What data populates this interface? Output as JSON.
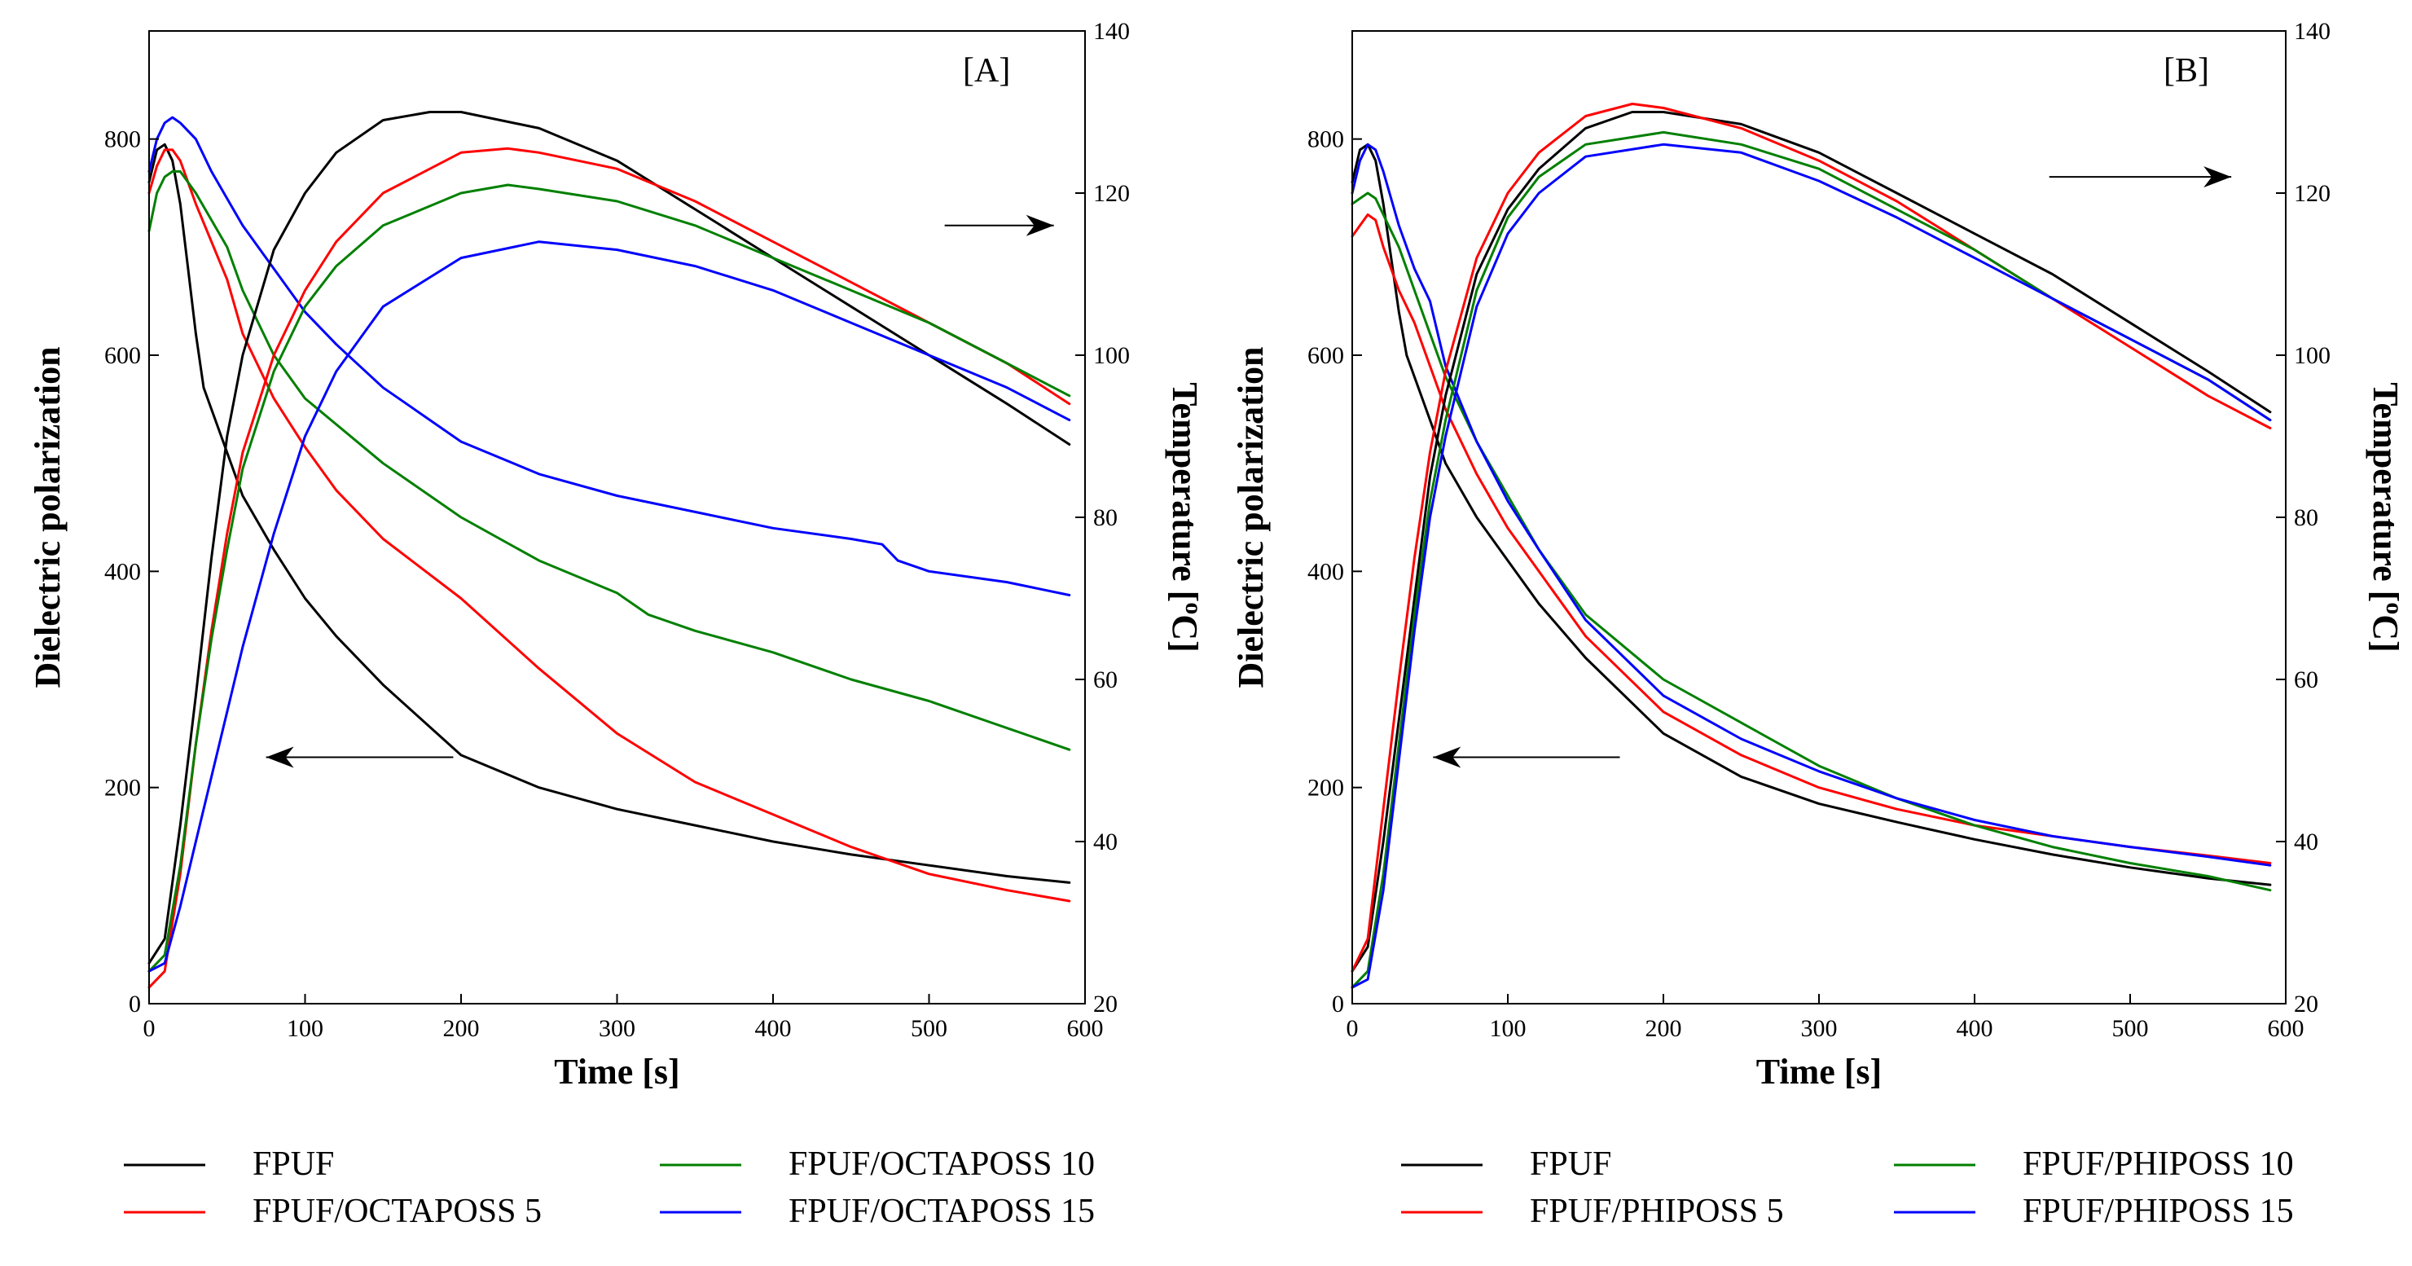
{
  "chart_data": [
    {
      "type": "line",
      "panel_label": "[A]",
      "xlabel": "Time [s]",
      "ylabel": "Dielectric polarization",
      "y2label_main": "Temperature [",
      "y2label_sup": "o",
      "y2label_end": "C]",
      "xlim": [
        0,
        600
      ],
      "ylim": [
        0,
        900
      ],
      "y2lim": [
        20,
        140
      ],
      "xticks": [
        0,
        100,
        200,
        300,
        400,
        500,
        600
      ],
      "yticks": [
        0,
        200,
        400,
        600,
        800
      ],
      "y2ticks": [
        20,
        40,
        60,
        80,
        100,
        120,
        140
      ],
      "arrows": [
        {
          "axis": "y",
          "direction": "left",
          "x_from": 195,
          "x_to": 75,
          "y": 228
        },
        {
          "axis": "y2",
          "direction": "right",
          "x_from": 510,
          "x_to": 580,
          "y": 116
        }
      ],
      "legend": [
        {
          "name": "FPUF",
          "color": "#000000"
        },
        {
          "name": "FPUF/OCTAPOSS 10",
          "color": "#008000"
        },
        {
          "name": "FPUF/OCTAPOSS 5",
          "color": "#ff0000"
        },
        {
          "name": "FPUF/OCTAPOSS 15",
          "color": "#0000ff"
        }
      ],
      "series": [
        {
          "name": "FPUF",
          "color": "#000000",
          "axis": "y",
          "x": [
            0,
            5,
            10,
            15,
            20,
            25,
            30,
            35,
            45,
            60,
            80,
            100,
            120,
            150,
            200,
            250,
            300,
            350,
            400,
            450,
            500,
            550,
            590
          ],
          "values": [
            760,
            790,
            795,
            780,
            740,
            680,
            620,
            570,
            530,
            470,
            420,
            375,
            340,
            295,
            230,
            200,
            180,
            165,
            150,
            138,
            128,
            118,
            112
          ]
        },
        {
          "name": "FPUF/OCTAPOSS 5",
          "color": "#ff0000",
          "axis": "y",
          "x": [
            0,
            5,
            10,
            15,
            20,
            30,
            50,
            60,
            80,
            100,
            120,
            150,
            200,
            250,
            300,
            350,
            400,
            450,
            500,
            550,
            590
          ],
          "values": [
            750,
            775,
            790,
            790,
            780,
            740,
            670,
            620,
            560,
            515,
            475,
            430,
            375,
            310,
            250,
            205,
            175,
            145,
            120,
            105,
            95
          ]
        },
        {
          "name": "FPUF/OCTAPOSS 10",
          "color": "#008000",
          "axis": "y",
          "x": [
            0,
            5,
            10,
            15,
            20,
            30,
            50,
            60,
            80,
            100,
            150,
            200,
            250,
            300,
            320,
            350,
            400,
            450,
            500,
            550,
            590
          ],
          "values": [
            715,
            750,
            765,
            770,
            770,
            750,
            700,
            660,
            600,
            560,
            500,
            450,
            410,
            380,
            360,
            345,
            325,
            300,
            280,
            255,
            235
          ]
        },
        {
          "name": "FPUF/OCTAPOSS 15",
          "color": "#0000ff",
          "axis": "y",
          "x": [
            0,
            5,
            10,
            15,
            20,
            30,
            40,
            60,
            80,
            100,
            120,
            150,
            200,
            250,
            300,
            350,
            400,
            450,
            470,
            480,
            500,
            550,
            590
          ],
          "values": [
            770,
            800,
            815,
            820,
            815,
            800,
            770,
            720,
            680,
            640,
            610,
            570,
            520,
            490,
            470,
            455,
            440,
            430,
            425,
            410,
            400,
            390,
            378
          ]
        },
        {
          "name": "FPUF",
          "color": "#000000",
          "axis": "y2",
          "x": [
            0,
            10,
            20,
            30,
            40,
            50,
            60,
            80,
            100,
            120,
            150,
            180,
            200,
            250,
            300,
            350,
            400,
            450,
            500,
            550,
            590
          ],
          "values": [
            25,
            28,
            42,
            58,
            75,
            90,
            100,
            113,
            120,
            125,
            129,
            130,
            130,
            128,
            124,
            118,
            112,
            106,
            100,
            94,
            89
          ]
        },
        {
          "name": "FPUF/OCTAPOSS 5",
          "color": "#ff0000",
          "axis": "y2",
          "x": [
            0,
            10,
            20,
            30,
            40,
            50,
            60,
            80,
            100,
            120,
            150,
            200,
            230,
            250,
            300,
            350,
            400,
            450,
            500,
            550,
            590
          ],
          "values": [
            22,
            24,
            36,
            52,
            66,
            78,
            88,
            100,
            108,
            114,
            120,
            125,
            125.5,
            125,
            123,
            119,
            114,
            109,
            104,
            99,
            94
          ]
        },
        {
          "name": "FPUF/OCTAPOSS 10",
          "color": "#008000",
          "axis": "y2",
          "x": [
            0,
            10,
            20,
            30,
            40,
            50,
            60,
            80,
            100,
            120,
            150,
            200,
            230,
            250,
            300,
            350,
            400,
            450,
            500,
            550,
            590
          ],
          "values": [
            24,
            26,
            37,
            52,
            65,
            76,
            86,
            98,
            106,
            111,
            116,
            120,
            121,
            120.5,
            119,
            116,
            112,
            108,
            104,
            99,
            95
          ]
        },
        {
          "name": "FPUF/OCTAPOSS 15",
          "color": "#0000ff",
          "axis": "y2",
          "x": [
            0,
            10,
            20,
            30,
            40,
            50,
            60,
            80,
            100,
            120,
            150,
            200,
            250,
            300,
            350,
            400,
            450,
            500,
            550,
            590
          ],
          "values": [
            24,
            25,
            32,
            40,
            48,
            56,
            64,
            78,
            90,
            98,
            106,
            112,
            114,
            113,
            111,
            108,
            104,
            100,
            96,
            92
          ]
        }
      ]
    },
    {
      "type": "line",
      "panel_label": "[B]",
      "xlabel": "Time [s]",
      "ylabel": "Dielectric polarization",
      "y2label_main": "Temperature [",
      "y2label_sup": "o",
      "y2label_end": "C]",
      "xlim": [
        0,
        600
      ],
      "ylim": [
        0,
        900
      ],
      "y2lim": [
        20,
        140
      ],
      "xticks": [
        0,
        100,
        200,
        300,
        400,
        500,
        600
      ],
      "yticks": [
        0,
        200,
        400,
        600,
        800
      ],
      "y2ticks": [
        20,
        40,
        60,
        80,
        100,
        120,
        140
      ],
      "arrows": [
        {
          "axis": "y",
          "direction": "left",
          "x_from": 172,
          "x_to": 52,
          "y": 228
        },
        {
          "axis": "y2",
          "direction": "right",
          "x_from": 448,
          "x_to": 565,
          "y": 122
        }
      ],
      "legend": [
        {
          "name": "FPUF",
          "color": "#000000"
        },
        {
          "name": "FPUF/PHIPOSS 10",
          "color": "#008000"
        },
        {
          "name": "FPUF/PHIPOSS 5",
          "color": "#ff0000"
        },
        {
          "name": "FPUF/PHIPOSS 15",
          "color": "#0000ff"
        }
      ],
      "series": [
        {
          "name": "FPUF",
          "color": "#000000",
          "axis": "y",
          "x": [
            0,
            5,
            10,
            15,
            20,
            25,
            30,
            35,
            45,
            60,
            80,
            100,
            120,
            150,
            200,
            250,
            300,
            350,
            400,
            450,
            500,
            550,
            590
          ],
          "values": [
            760,
            790,
            795,
            780,
            740,
            690,
            640,
            600,
            560,
            500,
            450,
            410,
            370,
            320,
            250,
            210,
            185,
            168,
            152,
            138,
            126,
            116,
            110
          ]
        },
        {
          "name": "FPUF/PHIPOSS 5",
          "color": "#ff0000",
          "axis": "y",
          "x": [
            0,
            5,
            10,
            15,
            20,
            30,
            40,
            50,
            60,
            80,
            100,
            120,
            150,
            200,
            250,
            300,
            350,
            400,
            450,
            500,
            550,
            590
          ],
          "values": [
            710,
            720,
            730,
            725,
            700,
            660,
            630,
            590,
            550,
            490,
            440,
            400,
            340,
            270,
            230,
            200,
            180,
            165,
            155,
            145,
            137,
            130
          ]
        },
        {
          "name": "FPUF/PHIPOSS 10",
          "color": "#008000",
          "axis": "y",
          "x": [
            0,
            5,
            10,
            15,
            20,
            30,
            40,
            50,
            60,
            80,
            100,
            120,
            150,
            200,
            250,
            300,
            350,
            400,
            450,
            500,
            550,
            590
          ],
          "values": [
            740,
            745,
            750,
            745,
            730,
            700,
            660,
            620,
            580,
            520,
            470,
            420,
            360,
            300,
            260,
            220,
            190,
            165,
            145,
            130,
            118,
            105
          ]
        },
        {
          "name": "FPUF/PHIPOSS 15",
          "color": "#0000ff",
          "axis": "y",
          "x": [
            0,
            5,
            10,
            15,
            20,
            30,
            40,
            50,
            60,
            80,
            100,
            120,
            150,
            200,
            250,
            300,
            350,
            400,
            450,
            500,
            550,
            590
          ],
          "values": [
            750,
            780,
            795,
            790,
            770,
            720,
            680,
            650,
            590,
            520,
            465,
            420,
            355,
            285,
            245,
            215,
            190,
            170,
            155,
            145,
            136,
            128
          ]
        },
        {
          "name": "FPUF",
          "color": "#000000",
          "axis": "y2",
          "x": [
            0,
            10,
            20,
            30,
            40,
            50,
            60,
            80,
            100,
            120,
            150,
            180,
            200,
            250,
            300,
            350,
            400,
            450,
            500,
            550,
            590
          ],
          "values": [
            24,
            27,
            40,
            55,
            70,
            85,
            95,
            110,
            118,
            123,
            128,
            130,
            130,
            128.5,
            125,
            120,
            115,
            110,
            104,
            98,
            93
          ]
        },
        {
          "name": "FPUF/PHIPOSS 5",
          "color": "#ff0000",
          "axis": "y2",
          "x": [
            0,
            10,
            20,
            30,
            40,
            50,
            60,
            80,
            100,
            120,
            150,
            180,
            200,
            250,
            300,
            350,
            400,
            450,
            500,
            550,
            590
          ],
          "values": [
            24,
            28,
            44,
            60,
            75,
            88,
            98,
            112,
            120,
            125,
            129.5,
            131,
            130.5,
            128,
            124,
            119,
            113,
            107,
            101,
            95,
            91
          ]
        },
        {
          "name": "FPUF/PHIPOSS 10",
          "color": "#008000",
          "axis": "y2",
          "x": [
            0,
            10,
            20,
            30,
            40,
            50,
            60,
            80,
            100,
            120,
            150,
            200,
            250,
            300,
            350,
            400,
            450,
            500,
            550,
            590
          ],
          "values": [
            22,
            24,
            36,
            52,
            68,
            82,
            92,
            108,
            117,
            122,
            126,
            127.5,
            126,
            123,
            118,
            113,
            107,
            102,
            97,
            92
          ]
        },
        {
          "name": "FPUF/PHIPOSS 15",
          "color": "#0000ff",
          "axis": "y2",
          "x": [
            0,
            10,
            20,
            30,
            40,
            50,
            60,
            80,
            100,
            120,
            150,
            200,
            250,
            300,
            350,
            400,
            450,
            500,
            550,
            590
          ],
          "values": [
            22,
            23,
            34,
            50,
            66,
            80,
            90,
            106,
            115,
            120,
            124.5,
            126,
            125,
            121.5,
            117,
            112,
            107,
            102,
            97,
            92
          ]
        }
      ]
    }
  ]
}
